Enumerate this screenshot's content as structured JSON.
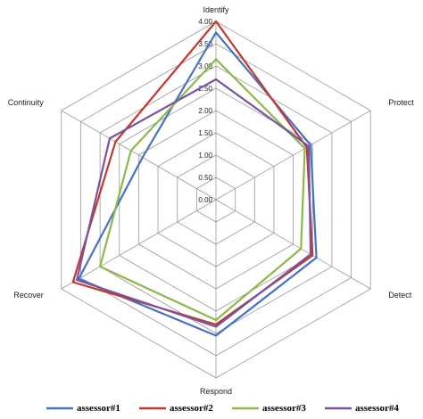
{
  "chart_data": {
    "type": "radar",
    "axes": [
      "Identify",
      "Protect",
      "Detect",
      "Respond",
      "Recover",
      "Continuity"
    ],
    "ticks": [
      "0.00",
      "0.50",
      "1.00",
      "1.50",
      "2.00",
      "2.50",
      "3.00",
      "3.50",
      "4.00"
    ],
    "rlim": [
      0,
      4
    ],
    "grid": true,
    "legend_position": "bottom",
    "series": [
      {
        "name": "assessor#1",
        "color": "#4472C4",
        "values": [
          3.75,
          2.45,
          2.6,
          3.05,
          3.55,
          1.9
        ]
      },
      {
        "name": "assessor#2",
        "color": "#C0392B",
        "values": [
          4.0,
          2.35,
          2.5,
          2.8,
          3.7,
          2.6
        ]
      },
      {
        "name": "assessor#3",
        "color": "#8DB84A",
        "values": [
          3.15,
          2.3,
          2.2,
          2.7,
          3.0,
          2.2
        ]
      },
      {
        "name": "assessor#4",
        "color": "#7B52A1",
        "values": [
          2.7,
          2.4,
          2.45,
          2.85,
          3.6,
          2.75
        ]
      }
    ]
  }
}
